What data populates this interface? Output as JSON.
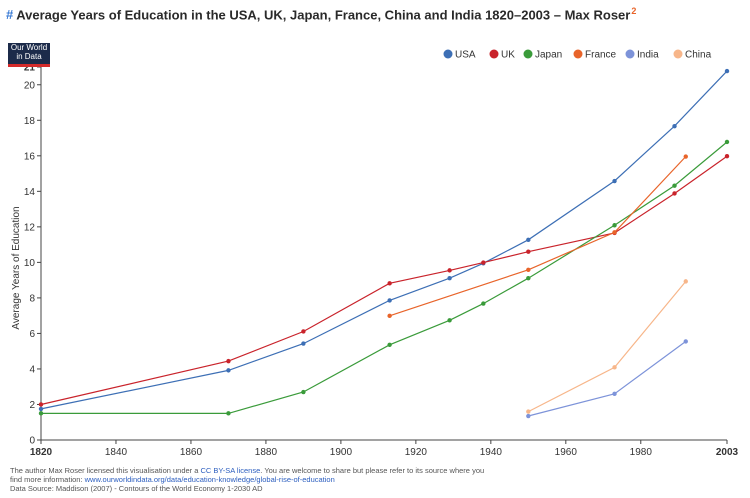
{
  "header": {
    "title": "Average Years of Education in the USA, UK, Japan, France, China and India 1820–2003 – Max Roser",
    "hash": "#",
    "superscript": "2"
  },
  "logo": {
    "line1": "Our World",
    "line2": "in Data"
  },
  "footer": {
    "line1_pre": "The author Max Roser licensed this visualisation under a ",
    "license_link": "CC BY-SA license",
    "line1_post": ". You are welcome to share but please refer to its source where you",
    "line2_pre": "find more information: ",
    "source_link": "www.ourworldindata.org/data/education-knowledge/global-rise-of-education",
    "line3": "Data Source: Maddison (2007) - Contours of the World Economy 1-2030 AD"
  },
  "colors": {
    "USA": "#3d6fb5",
    "UK": "#c9232b",
    "Japan": "#3a9b3a",
    "France": "#e8642a",
    "India": "#7d93d9",
    "China": "#f7b68a"
  },
  "chart_data": {
    "type": "line",
    "title": "Average Years of Education in the USA, UK, Japan, France, China and India 1820–2003 – Max Roser",
    "xlabel": "",
    "ylabel": "Average Years of Education",
    "xlim": [
      1820,
      2003
    ],
    "ylim": [
      0,
      21
    ],
    "x_ticks": [
      1820,
      1840,
      1860,
      1880,
      1900,
      1920,
      1940,
      1960,
      1980,
      2003
    ],
    "y_ticks": [
      0,
      2,
      4,
      6,
      8,
      10,
      12,
      14,
      16,
      18,
      20,
      21
    ],
    "grid": false,
    "legend_position": "top-right",
    "series": [
      {
        "name": "USA",
        "points": [
          [
            1820,
            1.75
          ],
          [
            1870,
            3.92
          ],
          [
            1890,
            5.43
          ],
          [
            1913,
            7.86
          ],
          [
            1929,
            9.11
          ],
          [
            1938,
            9.95
          ],
          [
            1950,
            11.27
          ],
          [
            1973,
            14.58
          ],
          [
            1989,
            17.67
          ],
          [
            2003,
            20.77
          ]
        ]
      },
      {
        "name": "UK",
        "points": [
          [
            1820,
            2.0
          ],
          [
            1870,
            4.44
          ],
          [
            1890,
            6.11
          ],
          [
            1913,
            8.82
          ],
          [
            1929,
            9.55
          ],
          [
            1938,
            9.99
          ],
          [
            1950,
            10.6
          ],
          [
            1973,
            11.66
          ],
          [
            1989,
            13.88
          ],
          [
            2003,
            15.98
          ]
        ]
      },
      {
        "name": "Japan",
        "points": [
          [
            1820,
            1.5
          ],
          [
            1870,
            1.5
          ],
          [
            1890,
            2.7
          ],
          [
            1913,
            5.36
          ],
          [
            1929,
            6.74
          ],
          [
            1938,
            7.68
          ],
          [
            1950,
            9.11
          ],
          [
            1973,
            12.09
          ],
          [
            1989,
            14.32
          ],
          [
            2003,
            16.78
          ]
        ]
      },
      {
        "name": "France",
        "points": [
          [
            1913,
            6.99
          ],
          [
            1950,
            9.58
          ],
          [
            1973,
            11.69
          ],
          [
            1992,
            15.96
          ]
        ]
      },
      {
        "name": "India",
        "points": [
          [
            1950,
            1.35
          ],
          [
            1973,
            2.6
          ],
          [
            1992,
            5.55
          ]
        ]
      },
      {
        "name": "China",
        "points": [
          [
            1950,
            1.6
          ],
          [
            1973,
            4.09
          ],
          [
            1992,
            8.93
          ]
        ]
      }
    ]
  }
}
